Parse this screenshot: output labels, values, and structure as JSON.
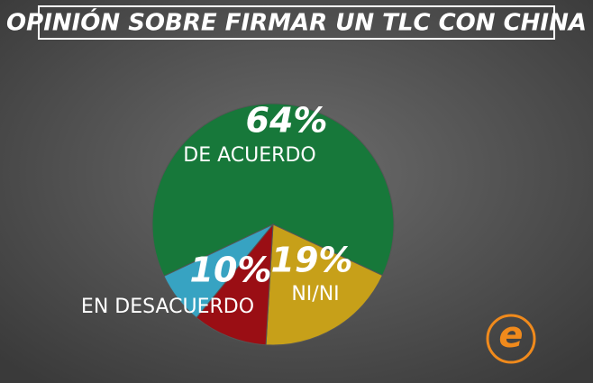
{
  "chart_data": {
    "type": "pie",
    "title": "OPINIÓN SOBRE FIRMAR UN TLC CON CHINA",
    "categories": [
      "DE ACUERDO",
      "NI/NI",
      "EN DESACUERDO",
      null
    ],
    "values": [
      64,
      19,
      10,
      7
    ],
    "value_labels": [
      "64%",
      "19%",
      "10%",
      null
    ],
    "colors": [
      "#17783a",
      "#c7a019",
      "#9a0e14",
      "#37a3c2"
    ]
  }
}
